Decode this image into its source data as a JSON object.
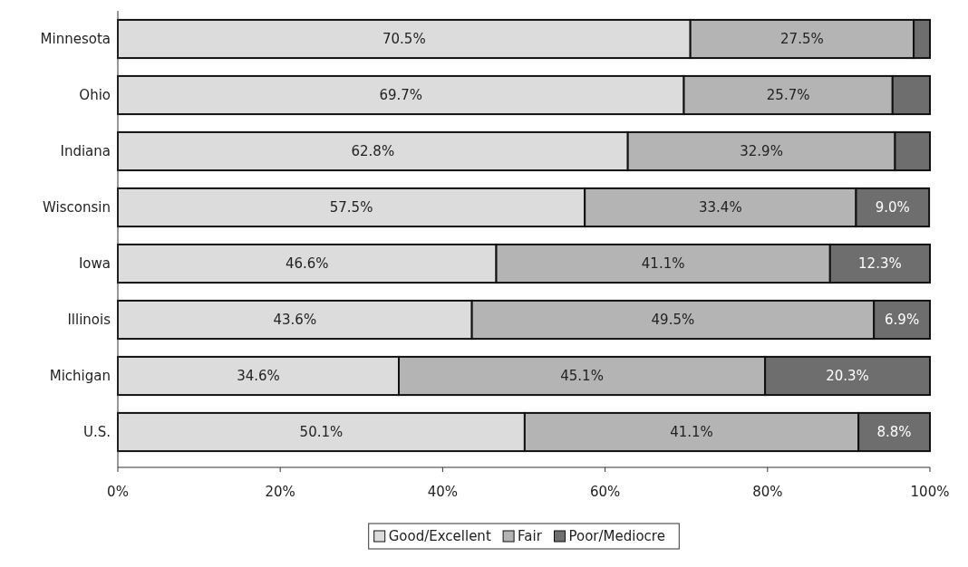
{
  "chart_data": {
    "type": "bar",
    "orientation": "horizontal",
    "stacked": true,
    "categories": [
      "Minnesota",
      "Ohio",
      "Indiana",
      "Wisconsin",
      "Iowa",
      "Illinois",
      "Michigan",
      "U.S."
    ],
    "series": [
      {
        "name": "Good/Excellent",
        "color": "#dcdcdc",
        "values": [
          70.5,
          69.7,
          62.8,
          57.5,
          46.6,
          43.6,
          34.6,
          50.1
        ],
        "value_labels": [
          "70.5%",
          "69.7%",
          "62.8%",
          "57.5%",
          "46.6%",
          "43.6%",
          "34.6%",
          "50.1%"
        ]
      },
      {
        "name": "Fair",
        "color": "#b4b4b4",
        "values": [
          27.5,
          25.7,
          32.9,
          33.4,
          41.1,
          49.5,
          45.1,
          41.1
        ],
        "value_labels": [
          "27.5%",
          "25.7%",
          "32.9%",
          "33.4%",
          "41.1%",
          "49.5%",
          "45.1%",
          "41.1%"
        ]
      },
      {
        "name": "Poor/Mediocre",
        "color": "#6e6e6e",
        "values": [
          2.0,
          4.6,
          4.3,
          9.0,
          12.3,
          6.9,
          20.3,
          8.8
        ],
        "value_labels": [
          null,
          null,
          null,
          "9.0%",
          "12.3%",
          "6.9%",
          "20.3%",
          "8.8%"
        ]
      }
    ],
    "xlim": [
      0,
      100
    ],
    "xticks": [
      {
        "value": 0,
        "label": "0%"
      },
      {
        "value": 20,
        "label": "20%"
      },
      {
        "value": 40,
        "label": "40%"
      },
      {
        "value": 60,
        "label": "60%"
      },
      {
        "value": 80,
        "label": "80%"
      },
      {
        "value": 100,
        "label": "100%"
      }
    ],
    "grid": false,
    "legend": "bottom"
  }
}
